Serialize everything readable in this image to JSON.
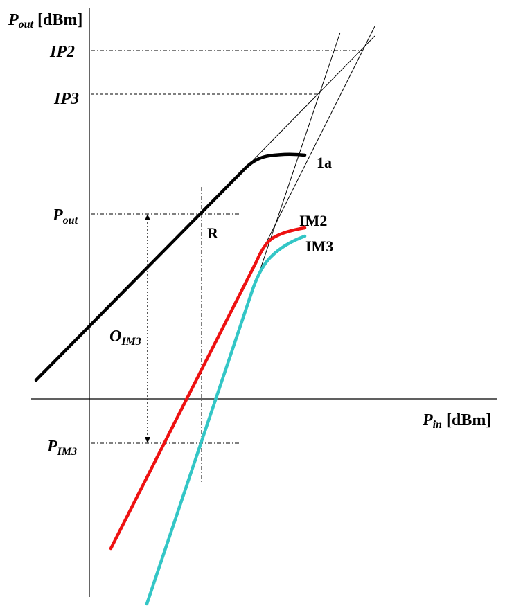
{
  "axes": {
    "y_label_main": "P",
    "y_label_sub": "out",
    "y_label_unit": " [dBm]",
    "x_label_main": "P",
    "x_label_sub": "in",
    "x_label_unit": " [dBm]"
  },
  "y_marks": {
    "ip2": "IP2",
    "ip3": "IP3",
    "pout_main": "P",
    "pout_sub": "out",
    "pim3_main": "P",
    "pim3_sub": "IM3"
  },
  "annotations": {
    "oim3_main": "O",
    "oim3_sub": "IM3",
    "point_r": "R"
  },
  "curves": {
    "fundamental": "1a",
    "im2": "IM2",
    "im3": "IM3"
  },
  "colors": {
    "fundamental": "#000000",
    "im2": "#ee1111",
    "im3": "#33c6c6"
  }
}
